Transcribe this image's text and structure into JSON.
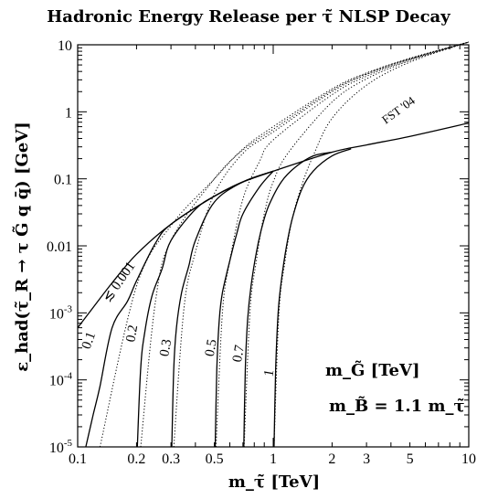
{
  "chart_data": {
    "type": "line",
    "title": "Hadronic Energy Release per τ̃ NLSP Decay",
    "xlabel": "m_τ̃ [TeV]",
    "ylabel": "ε_had(τ̃_R → τ G̃ q q̄) [GeV]",
    "x_scale": "log",
    "y_scale": "log",
    "xlim": [
      0.1,
      10
    ],
    "ylim": [
      1e-05,
      10
    ],
    "x_ticks": [
      {
        "value": 0.1,
        "label": "0.1"
      },
      {
        "value": 0.2,
        "label": "0.2"
      },
      {
        "value": 0.3,
        "label": "0.3"
      },
      {
        "value": 0.5,
        "label": "0.5"
      },
      {
        "value": 1,
        "label": "1"
      },
      {
        "value": 2,
        "label": "2"
      },
      {
        "value": 3,
        "label": "3"
      },
      {
        "value": 5,
        "label": "5"
      },
      {
        "value": 10,
        "label": "10"
      }
    ],
    "y_ticks": [
      {
        "value": 1e-05,
        "base": "10",
        "exp": "-5"
      },
      {
        "value": 0.0001,
        "base": "10",
        "exp": "-4"
      },
      {
        "value": 0.001,
        "base": "10",
        "exp": "-3"
      },
      {
        "value": 0.01,
        "label": "0.01"
      },
      {
        "value": 0.1,
        "label": "0.1"
      },
      {
        "value": 1,
        "label": "1"
      },
      {
        "value": 10,
        "label": "10"
      }
    ],
    "grid": false,
    "legend_title": "m_G̃ [TeV]",
    "annotation": "m_B̃ = 1.1 m_τ̃",
    "fst_label": "FST '04",
    "series": [
      {
        "label": "≲ 0.001",
        "style": "solid",
        "x": [
          0.1,
          0.12,
          0.15,
          0.2,
          0.3,
          0.5,
          0.7,
          1,
          2,
          3,
          5,
          10
        ],
        "y": [
          0.0006,
          0.0012,
          0.0028,
          0.0075,
          0.021,
          0.055,
          0.09,
          0.13,
          0.25,
          0.32,
          0.43,
          0.68
        ]
      },
      {
        "label": "0.1",
        "style": "solid",
        "x": [
          0.11,
          0.12,
          0.13,
          0.15,
          0.18,
          0.2,
          0.25,
          0.3,
          0.5,
          0.7,
          1
        ],
        "y": [
          1e-05,
          3e-05,
          8e-05,
          0.0006,
          0.0015,
          0.003,
          0.011,
          0.021,
          0.055,
          0.09,
          0.13
        ]
      },
      {
        "label": "0.2",
        "style": "solid",
        "x": [
          0.202,
          0.21,
          0.22,
          0.24,
          0.27,
          0.3,
          0.4,
          0.5,
          0.7,
          1
        ],
        "y": [
          1e-05,
          0.00015,
          0.0005,
          0.0018,
          0.0045,
          0.012,
          0.035,
          0.055,
          0.09,
          0.13
        ]
      },
      {
        "label": "0.3",
        "style": "solid",
        "x": [
          0.303,
          0.31,
          0.32,
          0.34,
          0.37,
          0.4,
          0.5,
          0.7,
          1
        ],
        "y": [
          1e-05,
          0.00015,
          0.0006,
          0.002,
          0.005,
          0.012,
          0.045,
          0.09,
          0.13
        ]
      },
      {
        "label": "0.5",
        "style": "solid",
        "x": [
          0.505,
          0.515,
          0.53,
          0.55,
          0.6,
          0.65,
          0.7,
          0.85,
          1
        ],
        "y": [
          1e-05,
          0.00015,
          0.0008,
          0.002,
          0.006,
          0.015,
          0.03,
          0.075,
          0.13
        ]
      },
      {
        "label": "0.7",
        "style": "solid",
        "x": [
          0.707,
          0.72,
          0.74,
          0.77,
          0.82,
          0.88,
          0.95,
          1.1,
          1.3,
          1.6,
          2
        ],
        "y": [
          1e-05,
          0.00015,
          0.0008,
          0.0025,
          0.008,
          0.02,
          0.04,
          0.09,
          0.15,
          0.22,
          0.25
        ]
      },
      {
        "label": "1",
        "style": "solid",
        "x": [
          1.01,
          1.03,
          1.06,
          1.1,
          1.17,
          1.25,
          1.4,
          1.6,
          2,
          2.5
        ],
        "y": [
          1e-05,
          0.00015,
          0.001,
          0.003,
          0.01,
          0.025,
          0.07,
          0.13,
          0.22,
          0.28
        ]
      },
      {
        "label": "",
        "style": "dotted",
        "x": [
          0.13,
          0.2,
          0.3,
          0.5,
          0.7,
          1,
          2,
          3,
          5,
          10
        ],
        "y": [
          1e-05,
          0.0025,
          0.02,
          0.1,
          0.28,
          0.6,
          2.2,
          3.8,
          6.3,
          11
        ]
      },
      {
        "label": "",
        "style": "dotted",
        "x": [
          0.21,
          0.25,
          0.3,
          0.5,
          0.7,
          1,
          2,
          3,
          5,
          10
        ],
        "y": [
          1e-05,
          0.0015,
          0.012,
          0.1,
          0.27,
          0.55,
          2.1,
          3.7,
          6.2,
          11
        ]
      },
      {
        "label": "",
        "style": "dotted",
        "x": [
          0.31,
          0.35,
          0.4,
          0.5,
          0.7,
          1,
          2,
          3,
          5,
          10
        ],
        "y": [
          1e-05,
          0.0012,
          0.008,
          0.06,
          0.24,
          0.5,
          2,
          3.6,
          6.1,
          11
        ]
      },
      {
        "label": "",
        "style": "dotted",
        "x": [
          0.51,
          0.55,
          0.6,
          0.7,
          0.85,
          1,
          2,
          3,
          5,
          10
        ],
        "y": [
          1e-05,
          0.001,
          0.006,
          0.05,
          0.18,
          0.38,
          1.8,
          3.4,
          6,
          11
        ]
      },
      {
        "label": "",
        "style": "dotted",
        "x": [
          0.71,
          0.76,
          0.82,
          0.9,
          1,
          1.2,
          2,
          3,
          5,
          10
        ],
        "y": [
          1e-05,
          0.001,
          0.006,
          0.03,
          0.09,
          0.25,
          1.4,
          3.1,
          5.8,
          11
        ]
      },
      {
        "label": "",
        "style": "dotted",
        "x": [
          1.01,
          1.07,
          1.15,
          1.25,
          1.4,
          1.6,
          2,
          3,
          5,
          10
        ],
        "y": [
          1e-05,
          0.001,
          0.006,
          0.025,
          0.08,
          0.22,
          0.8,
          2.5,
          5.5,
          11
        ]
      }
    ]
  }
}
